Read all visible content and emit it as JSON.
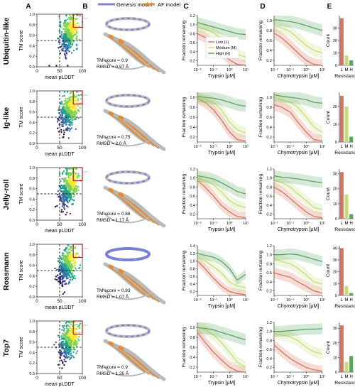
{
  "panel_letters": [
    "A",
    "B",
    "C",
    "D",
    "E"
  ],
  "legend_models": [
    "Genesis model",
    "AF model"
  ],
  "colors": {
    "scatter": [
      "#2c0d4c",
      "#3a3f8f",
      "#2f74a8",
      "#25a18e",
      "#7cd250",
      "#fde725"
    ],
    "genesis": "#7a7fd6",
    "af": "#e08a34",
    "grey_protein": "#b9b9b9",
    "low": "#d9735b",
    "medium": "#c6dc7a",
    "high": "#5aa55e",
    "highlight_box": "#a01f1f"
  },
  "rows": [
    {
      "name": "Ubiquitin-like",
      "tm": "TM-score = 0.9",
      "rmsd": "RMSD = 0.97 Å"
    },
    {
      "name": "Ig-like",
      "tm": "TM-score = 0.75",
      "rmsd": "RMSD = 2.0 Å"
    },
    {
      "name": "Jelly-roll",
      "tm": "TM-score = 0.88",
      "rmsd": "RMSD = 1.17 Å"
    },
    {
      "name": "Rossmann",
      "tm": "TM-score = 0.93",
      "rmsd": "RMSD = 1.07 Å"
    },
    {
      "name": "Top7",
      "tm": "TM-score = 0.9",
      "rmsd": "RMSD = 1.35 Å"
    }
  ],
  "labels": {
    "a_ylabel": "TM score",
    "a_xlabel": "mean pLDDT",
    "c_xlabel": "Trypsin [μM]",
    "d_xlabel": "Chymotrypsin [μM]",
    "cd_ylabel": "Fraction remaining",
    "e_ylabel": "Count",
    "e_xlabel": "Resistance"
  },
  "legend_resistance": [
    "Low (L)",
    "Medium (M)",
    "High (H)"
  ],
  "chart_data": [
    {
      "panel": "A",
      "type": "scatter",
      "x_ticks": [
        "0",
        "50",
        "100"
      ],
      "y_ticks": [
        "0.0",
        "0.2",
        "0.4",
        "0.6",
        "0.8",
        "1.0"
      ],
      "xlim": [
        0,
        100
      ],
      "ylim": [
        0,
        1
      ],
      "threshold_lines": {
        "x": 50,
        "y": 0.5
      }
    },
    {
      "panel": "C",
      "type": "line",
      "xscale": "log",
      "x_ticks": [
        "10⁻²",
        "10⁻¹",
        "10⁰",
        "10¹"
      ],
      "x": [
        0.01,
        0.03,
        0.1,
        0.3,
        1,
        3,
        10
      ],
      "y_ticks": [
        [
          "0.2",
          "0.4",
          "0.6",
          "0.8",
          "1.0",
          "1.2"
        ],
        [
          "0.2",
          "0.4",
          "0.6",
          "0.8",
          "1.0"
        ],
        [
          "0.2",
          "0.4",
          "0.6",
          "0.8",
          "1.0",
          "1.2"
        ],
        [
          "0.2",
          "0.4",
          "0.6",
          "0.8",
          "1.0",
          "1.2",
          "1.4"
        ],
        [
          "0.2",
          "0.4",
          "0.6",
          "0.8",
          "1.0"
        ]
      ],
      "ylims": [
        [
          0.1,
          1.2
        ],
        [
          0.1,
          1.1
        ],
        [
          0.1,
          1.2
        ],
        [
          0.1,
          1.4
        ],
        [
          0.1,
          1.1
        ]
      ],
      "rows": [
        {
          "low": [
            0.8,
            0.72,
            0.55,
            0.4,
            0.22,
            0.12,
            0.1
          ],
          "medium": [
            0.95,
            0.9,
            0.82,
            0.7,
            0.5,
            0.35,
            0.28
          ],
          "high": [
            1.05,
            1.0,
            0.95,
            0.9,
            0.85,
            0.8,
            0.78
          ]
        },
        {
          "low": [
            0.98,
            0.9,
            0.75,
            0.55,
            0.3,
            0.15,
            0.12
          ],
          "medium": [
            1.0,
            0.95,
            0.9,
            0.75,
            0.5,
            0.35,
            0.28
          ],
          "high": [
            1.02,
            1.0,
            0.98,
            0.95,
            0.9,
            0.85,
            0.82
          ]
        },
        {
          "low": [
            0.95,
            0.8,
            0.6,
            0.4,
            0.25,
            0.15,
            0.12
          ],
          "medium": [
            1.0,
            0.95,
            0.85,
            0.7,
            0.5,
            0.4,
            0.35
          ],
          "high": [
            1.05,
            1.02,
            0.98,
            0.9,
            0.8,
            0.7,
            0.65
          ]
        },
        {
          "low": [
            1.0,
            0.8,
            0.55,
            0.35,
            0.2,
            0.15,
            0.12
          ],
          "medium": [
            1.1,
            1.0,
            0.85,
            0.7,
            0.45,
            0.35,
            0.3
          ],
          "high": [
            1.2,
            1.15,
            1.1,
            1.0,
            0.8,
            0.5,
            0.65
          ]
        },
        {
          "low": [
            0.9,
            0.7,
            0.5,
            0.35,
            0.2,
            0.12,
            0.1
          ],
          "medium": [
            1.0,
            0.95,
            0.85,
            0.7,
            0.5,
            0.3,
            0.2
          ],
          "high": [
            1.0,
            0.98,
            0.95,
            0.9,
            0.85,
            0.8,
            0.75
          ]
        }
      ]
    },
    {
      "panel": "D",
      "type": "line",
      "xscale": "log",
      "x_ticks": [
        "10⁻²",
        "10⁻¹",
        "10⁰",
        "10¹"
      ],
      "x": [
        0.01,
        0.03,
        0.1,
        0.3,
        1,
        3,
        10
      ],
      "y_ticks": [
        [
          "0.2",
          "0.4",
          "0.6",
          "0.8",
          "1.0"
        ],
        [
          "0.2",
          "0.4",
          "0.6",
          "0.8",
          "1.0"
        ],
        [
          "0.2",
          "0.4",
          "0.6",
          "0.8",
          "1.0",
          "1.2"
        ],
        [
          "0.2",
          "0.4",
          "0.6",
          "0.8",
          "1.0",
          "1.2"
        ],
        [
          "0.2",
          "0.4",
          "0.6",
          "0.8",
          "1.0",
          "1.2"
        ]
      ],
      "ylims": [
        [
          0.1,
          1.1
        ],
        [
          0.1,
          1.1
        ],
        [
          0.1,
          1.2
        ],
        [
          0.1,
          1.2
        ],
        [
          0.1,
          1.2
        ]
      ],
      "rows": [
        {
          "low": [
            0.75,
            0.65,
            0.5,
            0.35,
            0.2,
            0.12,
            0.1
          ],
          "medium": [
            0.9,
            0.85,
            0.78,
            0.65,
            0.5,
            0.4,
            0.35
          ],
          "high": [
            1.02,
            1.0,
            0.98,
            0.95,
            0.9,
            0.85,
            0.8
          ]
        },
        {
          "low": [
            0.85,
            0.8,
            0.7,
            0.5,
            0.3,
            0.15,
            0.12
          ],
          "medium": [
            1.0,
            0.95,
            0.9,
            0.8,
            0.6,
            0.4,
            0.3
          ],
          "high": [
            1.05,
            1.02,
            1.0,
            0.98,
            0.95,
            0.9,
            0.88
          ]
        },
        {
          "low": [
            0.8,
            0.7,
            0.55,
            0.4,
            0.25,
            0.15,
            0.12
          ],
          "medium": [
            0.95,
            0.9,
            0.8,
            0.65,
            0.5,
            0.35,
            0.3
          ],
          "high": [
            1.05,
            1.02,
            1.0,
            0.98,
            0.95,
            0.92,
            0.9
          ]
        },
        {
          "low": [
            0.6,
            0.55,
            0.5,
            0.4,
            0.3,
            0.2,
            0.15
          ],
          "medium": [
            0.9,
            0.85,
            0.8,
            0.7,
            0.55,
            0.4,
            0.35
          ],
          "high": [
            1.0,
            1.0,
            1.02,
            1.0,
            0.95,
            0.9,
            0.85
          ]
        },
        {
          "low": [
            0.7,
            0.55,
            0.4,
            0.3,
            0.2,
            0.15,
            0.12
          ],
          "medium": [
            0.95,
            0.92,
            0.88,
            0.8,
            0.65,
            0.55,
            0.5
          ],
          "high": [
            1.0,
            1.0,
            1.02,
            1.03,
            1.05,
            1.05,
            1.06
          ]
        }
      ]
    },
    {
      "panel": "E",
      "type": "bar",
      "categories": [
        "L",
        "M",
        "H"
      ],
      "y_ticks": [
        [
          "0",
          "10",
          "20",
          "30"
        ],
        [
          "0",
          "10",
          "20"
        ],
        [
          "0",
          "10",
          "20",
          "30"
        ],
        [
          "0",
          "10",
          "20",
          "30",
          "40"
        ],
        [
          "0",
          "10",
          "20",
          "30"
        ]
      ],
      "ylims": [
        [
          0,
          40
        ],
        [
          0,
          28
        ],
        [
          0,
          33
        ],
        [
          0,
          42
        ],
        [
          0,
          34
        ]
      ],
      "rows": [
        {
          "values": [
            38,
            8,
            4
          ]
        },
        {
          "values": [
            26,
            20,
            3
          ]
        },
        {
          "values": [
            31,
            16,
            3
          ]
        },
        {
          "values": [
            40,
            8,
            2
          ]
        },
        {
          "values": [
            32,
            7,
            11
          ]
        }
      ]
    }
  ]
}
